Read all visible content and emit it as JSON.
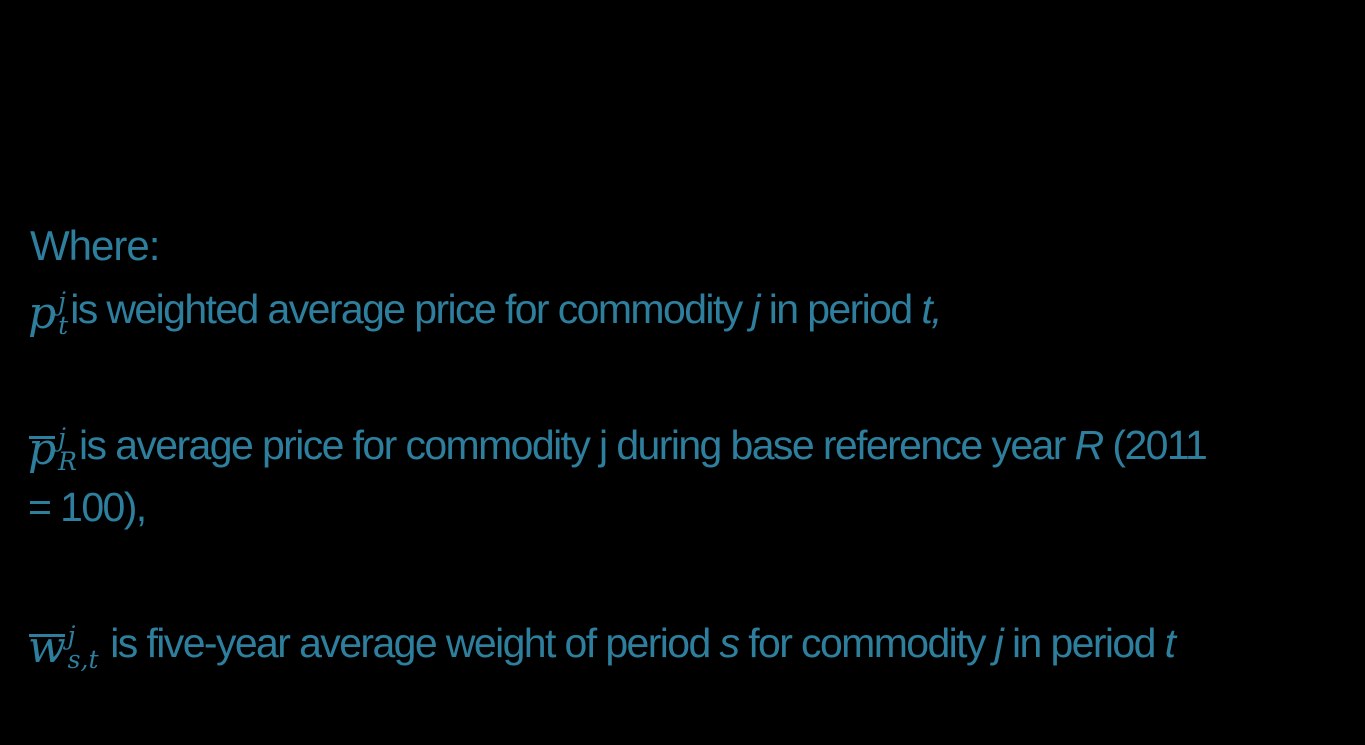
{
  "colors": {
    "background": "#000000",
    "text": "#2E7F9D"
  },
  "intro": {
    "label": "Where:"
  },
  "definitions": [
    {
      "symbol": {
        "base": "p",
        "bar": false,
        "sup": "j",
        "sub": "t"
      },
      "segments": [
        {
          "t": "is weighted average price for commodity ",
          "italic": false
        },
        {
          "t": "j",
          "italic": true
        },
        {
          "t": " in period ",
          "italic": false
        },
        {
          "t": "t,",
          "italic": true
        }
      ]
    },
    {
      "symbol": {
        "base": "p",
        "bar": true,
        "sup": "j",
        "sub": "R"
      },
      "line1_segments": [
        {
          "t": "is average price for commodity j during base reference year ",
          "italic": false
        },
        {
          "t": "R",
          "italic": true
        },
        {
          "t": " (2011",
          "italic": false
        }
      ],
      "line2": "= 100),"
    },
    {
      "symbol": {
        "base": "w",
        "bar": true,
        "sup": "j",
        "sub": "s,t"
      },
      "segments": [
        {
          "t": " is five-year average weight of period ",
          "italic": false
        },
        {
          "t": "s",
          "italic": true
        },
        {
          "t": " for commodity ",
          "italic": false
        },
        {
          "t": "j",
          "italic": true
        },
        {
          "t": " in period ",
          "italic": false
        },
        {
          "t": "t",
          "italic": true
        }
      ]
    }
  ]
}
